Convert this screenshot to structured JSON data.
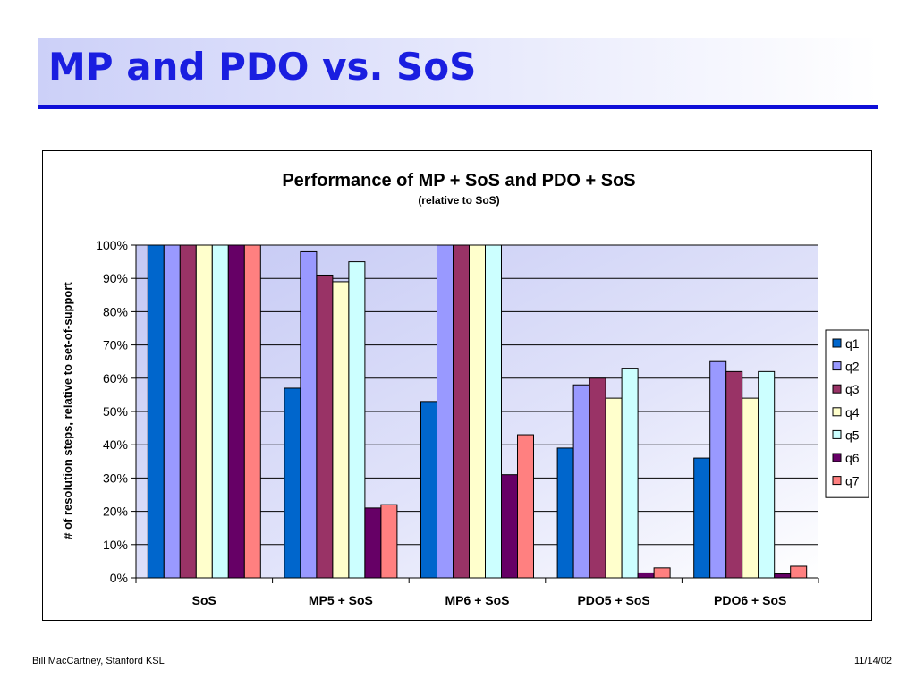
{
  "slide": {
    "title": "MP and PDO vs. SoS",
    "footer_left": "Bill MacCartney, Stanford KSL",
    "footer_right": "11/14/02"
  },
  "colors": {
    "q1": "#0066cc",
    "q2": "#9999ff",
    "q3": "#993366",
    "q4": "#ffffcc",
    "q5": "#ccffff",
    "q6": "#660066",
    "q7": "#ff8080",
    "title": "#1a1ee0",
    "rule": "#0e0ed8"
  },
  "chart_data": {
    "type": "bar",
    "title": "Performance of MP + SoS and PDO + SoS",
    "subtitle": "(relative to SoS)",
    "ylabel": "# of resolution steps, relative to set-of-support",
    "xlabel": "",
    "categories": [
      "SoS",
      "MP5 + SoS",
      "MP6 + SoS",
      "PDO5 + SoS",
      "PDO6 + SoS"
    ],
    "ylim": [
      0,
      1
    ],
    "yticks": [
      0,
      0.1,
      0.2,
      0.3,
      0.4,
      0.5,
      0.6,
      0.7,
      0.8,
      0.9,
      1.0
    ],
    "ytick_labels": [
      "0%",
      "10%",
      "20%",
      "30%",
      "40%",
      "50%",
      "60%",
      "70%",
      "80%",
      "90%",
      "100%"
    ],
    "grid": true,
    "legend_position": "right",
    "series": [
      {
        "name": "q1",
        "values": [
          1.0,
          0.57,
          0.53,
          0.39,
          0.36
        ]
      },
      {
        "name": "q2",
        "values": [
          1.0,
          0.98,
          1.01,
          0.58,
          0.65
        ]
      },
      {
        "name": "q3",
        "values": [
          1.0,
          0.91,
          1.01,
          0.6,
          0.62
        ]
      },
      {
        "name": "q4",
        "values": [
          1.0,
          0.89,
          1.01,
          0.54,
          0.54
        ]
      },
      {
        "name": "q5",
        "values": [
          1.0,
          0.95,
          1.01,
          0.63,
          0.62
        ]
      },
      {
        "name": "q6",
        "values": [
          1.0,
          0.21,
          0.31,
          0.015,
          0.012
        ]
      },
      {
        "name": "q7",
        "values": [
          1.0,
          0.22,
          0.43,
          0.03,
          0.035
        ]
      }
    ]
  }
}
